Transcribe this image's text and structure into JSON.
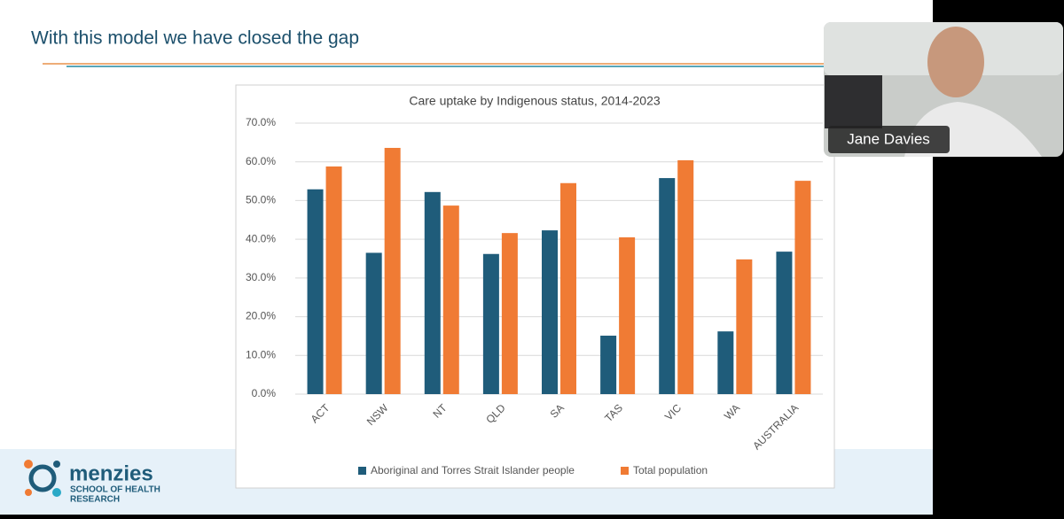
{
  "slide": {
    "title": "With this model we have closed the gap",
    "logo": {
      "name": "menzies",
      "subtitle_1": "SCHOOL OF HEALTH",
      "subtitle_2": "RESEARCH"
    }
  },
  "participant": {
    "name": "Jane Davies"
  },
  "chart_data": {
    "type": "bar",
    "title": "Care uptake by Indigenous status, 2014-2023",
    "categories": [
      "ACT",
      "NSW",
      "NT",
      "QLD",
      "SA",
      "TAS",
      "VIC",
      "WA",
      "AUSTRALIA"
    ],
    "series": [
      {
        "name": "Aboriginal and Torres Strait Islander people",
        "color": "#1f5c7a",
        "values": [
          52.9,
          36.5,
          52.2,
          36.2,
          42.3,
          15.1,
          55.8,
          16.2,
          36.8
        ]
      },
      {
        "name": "Total population",
        "color": "#f07b34",
        "values": [
          58.8,
          63.6,
          48.7,
          41.6,
          54.5,
          40.5,
          60.4,
          34.8,
          55.1
        ]
      }
    ],
    "ylim": [
      0,
      70
    ],
    "yticks": [
      {
        "value": 0,
        "label": "0.0%"
      },
      {
        "value": 10,
        "label": "10.0%"
      },
      {
        "value": 20,
        "label": "20.0%"
      },
      {
        "value": 30,
        "label": "30.0%"
      },
      {
        "value": 40,
        "label": "40.0%"
      },
      {
        "value": 50,
        "label": "50.0%"
      },
      {
        "value": 60,
        "label": "60.0%"
      },
      {
        "value": 70,
        "label": "70.0%"
      }
    ],
    "grid": true,
    "legend": "bottom"
  }
}
